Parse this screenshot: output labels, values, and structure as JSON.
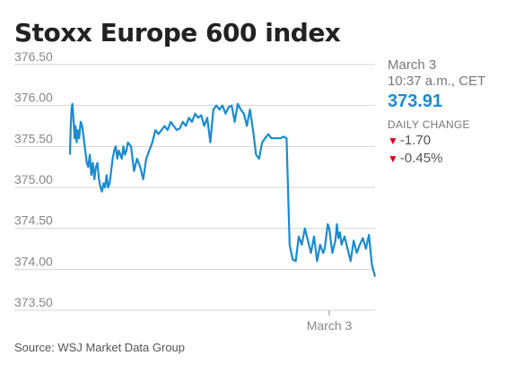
{
  "title": "Stoxx Europe 600 index",
  "source": "Source: WSJ Market Data Group",
  "info": {
    "date_line1": "March 3",
    "date_line2": "10:37 a.m., CET",
    "price": "373.91",
    "daily_change_label": "DAILY CHANGE",
    "change_points": "-1.70",
    "change_percent": "-0.45%",
    "accent_color": "#1a8bd1",
    "down_color": "#d0021b"
  },
  "chart_data": {
    "type": "line",
    "title": "Stoxx Europe 600 index",
    "xlabel": "",
    "ylabel": "",
    "ylim": [
      373.5,
      376.5
    ],
    "yticks": [
      "376.50",
      "376.00",
      "375.50",
      "375.00",
      "374.50",
      "374.00",
      "373.50"
    ],
    "x_tick_labels": [
      {
        "label": "March 3",
        "x": 0.85
      }
    ],
    "xlim": [
      0,
      1
    ],
    "grid": true,
    "series": [
      {
        "name": "",
        "color": "#1a8bd1",
        "x": [
          0.0,
          0.002,
          0.005,
          0.008,
          0.012,
          0.015,
          0.018,
          0.022,
          0.025,
          0.03,
          0.035,
          0.04,
          0.045,
          0.05,
          0.055,
          0.06,
          0.065,
          0.07,
          0.075,
          0.08,
          0.085,
          0.09,
          0.095,
          0.1,
          0.105,
          0.11,
          0.115,
          0.12,
          0.125,
          0.13,
          0.135,
          0.14,
          0.145,
          0.15,
          0.155,
          0.16,
          0.165,
          0.17,
          0.175,
          0.18,
          0.185,
          0.19,
          0.2,
          0.21,
          0.22,
          0.23,
          0.24,
          0.25,
          0.26,
          0.27,
          0.28,
          0.29,
          0.3,
          0.31,
          0.32,
          0.33,
          0.34,
          0.35,
          0.36,
          0.37,
          0.38,
          0.39,
          0.4,
          0.41,
          0.42,
          0.43,
          0.44,
          0.45,
          0.46,
          0.47,
          0.48,
          0.49,
          0.5,
          0.51,
          0.52,
          0.53,
          0.54,
          0.55,
          0.56,
          0.57,
          0.58,
          0.59,
          0.6,
          0.61,
          0.62,
          0.63,
          0.64,
          0.65,
          0.66,
          0.67,
          0.68,
          0.69,
          0.7,
          0.71,
          0.72,
          0.73,
          0.74,
          0.75,
          0.76,
          0.77,
          0.78,
          0.79,
          0.8,
          0.81,
          0.82,
          0.83,
          0.835,
          0.84,
          0.845,
          0.85,
          0.86,
          0.87,
          0.875,
          0.88,
          0.885,
          0.89,
          0.9,
          0.91,
          0.92,
          0.93,
          0.94,
          0.95,
          0.96,
          0.97,
          0.98,
          0.99,
          1.0
        ],
        "values": [
          375.4,
          375.7,
          375.95,
          376.02,
          375.8,
          375.6,
          375.75,
          375.55,
          375.7,
          375.6,
          375.8,
          375.75,
          375.6,
          375.45,
          375.3,
          375.25,
          375.4,
          375.15,
          375.3,
          375.1,
          375.25,
          375.3,
          375.1,
          375.0,
          374.95,
          375.05,
          375.0,
          375.15,
          375.0,
          375.05,
          375.2,
          375.35,
          375.45,
          375.5,
          375.35,
          375.45,
          375.4,
          375.35,
          375.5,
          375.4,
          375.45,
          375.55,
          375.5,
          375.2,
          375.35,
          375.25,
          375.1,
          375.35,
          375.45,
          375.55,
          375.7,
          375.65,
          375.7,
          375.75,
          375.7,
          375.8,
          375.75,
          375.7,
          375.72,
          375.8,
          375.75,
          375.85,
          375.8,
          375.9,
          375.85,
          375.88,
          375.75,
          375.85,
          375.55,
          375.95,
          376.0,
          375.95,
          376.0,
          375.9,
          375.98,
          376.0,
          375.8,
          376.02,
          375.95,
          375.9,
          375.75,
          375.95,
          375.7,
          375.4,
          375.35,
          375.55,
          375.6,
          375.65,
          375.6,
          375.6,
          375.6,
          375.6,
          375.62,
          375.6,
          374.3,
          374.12,
          374.1,
          374.4,
          374.3,
          374.5,
          374.35,
          374.2,
          374.4,
          374.1,
          374.3,
          374.2,
          374.25,
          374.4,
          374.55,
          374.5,
          374.2,
          374.35,
          374.55,
          374.38,
          374.45,
          374.3,
          374.4,
          374.25,
          374.1,
          374.35,
          374.2,
          374.3,
          374.38,
          374.25,
          374.42,
          374.05,
          373.91
        ]
      }
    ]
  }
}
